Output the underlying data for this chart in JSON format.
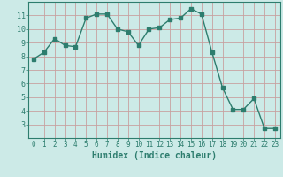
{
  "x": [
    0,
    1,
    2,
    3,
    4,
    5,
    6,
    7,
    8,
    9,
    10,
    11,
    12,
    13,
    14,
    15,
    16,
    17,
    18,
    19,
    20,
    21,
    22,
    23
  ],
  "y": [
    7.8,
    8.3,
    9.3,
    8.8,
    8.7,
    10.8,
    11.1,
    11.1,
    10.0,
    9.8,
    8.8,
    10.0,
    10.1,
    10.7,
    10.8,
    11.5,
    11.1,
    8.3,
    5.7,
    4.1,
    4.1,
    4.9,
    2.7,
    2.7
  ],
  "line_color": "#2d7d6e",
  "marker_color": "#2d7d6e",
  "bg_color": "#cceae7",
  "grid_color": "#c8a0a0",
  "axis_color": "#2d7d6e",
  "xlabel": "Humidex (Indice chaleur)",
  "xlim": [
    -0.5,
    23.5
  ],
  "ylim": [
    2.0,
    12.0
  ],
  "yticks": [
    3,
    4,
    5,
    6,
    7,
    8,
    9,
    10,
    11
  ],
  "xticks": [
    0,
    1,
    2,
    3,
    4,
    5,
    6,
    7,
    8,
    9,
    10,
    11,
    12,
    13,
    14,
    15,
    16,
    17,
    18,
    19,
    20,
    21,
    22,
    23
  ],
  "font_color": "#2d7d6e",
  "tick_fontsize": 5.5,
  "xlabel_fontsize": 7.0,
  "ytick_fontsize": 6.0,
  "linewidth": 1.0,
  "markersize": 2.2
}
